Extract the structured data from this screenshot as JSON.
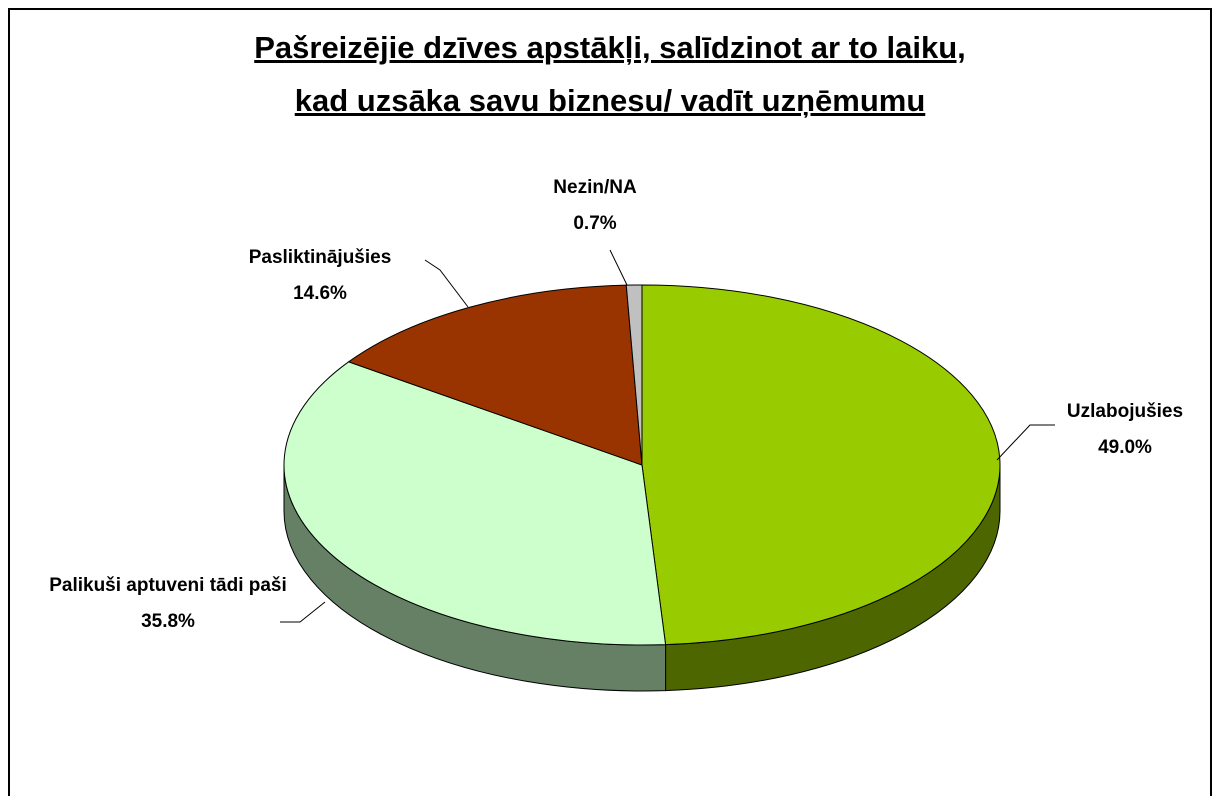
{
  "chart_data": {
    "type": "pie",
    "title": [
      "Pašreizējie dzīves apstākļi, salīdzinot ar to laiku,",
      "kad uzsāka savu biznesu/ vadīt uzņēmumu"
    ],
    "categories": [
      "Uzlabojušies",
      "Palikuši aptuveni tādi paši",
      "Pasliktinājušies",
      "Nezin/NA"
    ],
    "values": [
      49.0,
      35.8,
      14.6,
      0.7
    ],
    "value_labels": [
      "49.0%",
      "35.8%",
      "14.6%",
      "0.7%"
    ],
    "colors": [
      "#99cc00",
      "#ccffcc",
      "#993300",
      "#c0c0c0"
    ]
  }
}
